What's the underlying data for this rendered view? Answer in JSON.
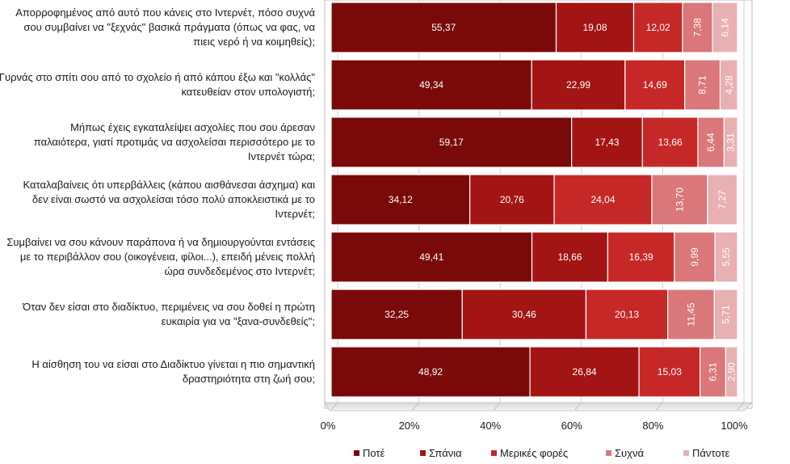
{
  "chart_data": {
    "type": "bar",
    "orientation": "horizontal",
    "stacked": "percent",
    "xlim": [
      0,
      100
    ],
    "x_ticks": [
      "0%",
      "20%",
      "40%",
      "60%",
      "80%",
      "100%"
    ],
    "grid": true,
    "legend_position": "bottom",
    "categories": [
      [
        "Απορροφημένος από αυτό που κάνεις στο Ιντερνέτ, πόσο συχνά",
        "σου συμβαίνει να \"ξεχνάς\" βασικά πράγματα (όπως να φας, να",
        "πιεις νερό ή να κοιμηθείς);"
      ],
      [
        "Γυρνάς στο σπίτι σου από το σχολείο ή από κάπου έξω και \"κολλάς\"",
        "κατευθείαν στον υπολογιστή;"
      ],
      [
        "Μήπως έχεις εγκαταλείψει ασχολίες που σου άρεσαν",
        "παλαιότερα, γιατί προτιμάς να ασχολείσαι περισσότερο με το",
        "Ιντερνέτ τώρα;"
      ],
      [
        "Καταλαβαίνεις ότι υπερβάλλεις (κάπου αισθάνεσαι άσχημα) και",
        "δεν είναι σωστό να ασχολείσαι τόσο πολύ αποκλειστικά με το",
        "Ιντερνέτ;"
      ],
      [
        "Συμβαίνει να σου κάνουν παράπονα ή να δημιουργούνται εντάσεις",
        "με το περιβάλλον σου (οικογένεια, φίλοι...), επειδή μένεις πολλή",
        "ώρα συνδεδεμένος στο Ιντερνέτ;"
      ],
      [
        "Όταν δεν είσαι στο διαδίκτυο, περιμένεις να σου δοθεί η πρώτη",
        "ευκαιρία για να \"ξανα-συνδεθείς\";"
      ],
      [
        "Η αίσθηση του να είσαι στο Διαδίκτυο γίνεται η πιο σημαντική",
        "δραστηριότητα στη ζωή σου;"
      ]
    ],
    "series": [
      {
        "name": "Ποτέ",
        "color": "#7a0a0a",
        "values": [
          55.37,
          49.34,
          59.17,
          34.12,
          49.41,
          32.25,
          48.92
        ],
        "labels": [
          "55,37",
          "49,34",
          "59,17",
          "34,12",
          "49,41",
          "32,25",
          "48,92"
        ]
      },
      {
        "name": "Σπάνια",
        "color": "#a31414",
        "values": [
          19.08,
          22.99,
          17.43,
          20.76,
          18.66,
          30.46,
          26.84
        ],
        "labels": [
          "19,08",
          "22,99",
          "17,43",
          "20,76",
          "18,66",
          "30,46",
          "26,84"
        ]
      },
      {
        "name": "Μερικές φορές",
        "color": "#c62828",
        "values": [
          12.02,
          14.69,
          13.66,
          24.04,
          16.39,
          20.13,
          15.03
        ],
        "labels": [
          "12,02",
          "14,69",
          "13,66",
          "24,04",
          "16,39",
          "20,13",
          "15,03"
        ]
      },
      {
        "name": "Συχνά",
        "color": "#d9777b",
        "values": [
          7.38,
          8.71,
          6.44,
          13.7,
          9.99,
          11.45,
          6.31
        ],
        "labels": [
          "7,38",
          "8,71",
          "6,44",
          "13,70",
          "9,99",
          "11,45",
          "6,31"
        ]
      },
      {
        "name": "Πάντοτε",
        "color": "#e8b0b3",
        "values": [
          6.14,
          4.28,
          3.31,
          7.27,
          5.55,
          5.71,
          2.9
        ],
        "labels": [
          "6,14",
          "4,28",
          "3,31",
          "7,27",
          "5,55",
          "5,71",
          "2,90"
        ]
      }
    ]
  }
}
